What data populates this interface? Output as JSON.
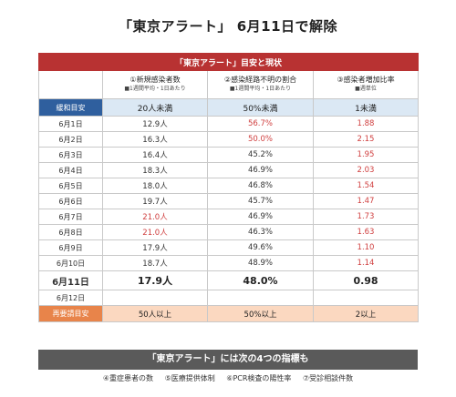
{
  "title": "「東京アラート」 6月11日で解除",
  "table": {
    "caption": "「東京アラート」目安と現状",
    "headers": [
      {
        "label": "①新規感染者数",
        "sub": "■1週間平均・1日あたり"
      },
      {
        "label": "②感染経路不明の割合",
        "sub": "■1週間平均・1日あたり"
      },
      {
        "label": "③感染者増加比率",
        "sub": "■週単位"
      }
    ],
    "standard": {
      "label": "緩和目安",
      "values": [
        "20人未満",
        "50%未満",
        "1未満"
      ]
    },
    "rows": [
      {
        "date": "6月1日",
        "v1": "12.9人",
        "v1c": "blk",
        "v2": "56.7%",
        "v2c": "red",
        "v3": "1.88",
        "v3c": "red"
      },
      {
        "date": "6月2日",
        "v1": "16.3人",
        "v1c": "blk",
        "v2": "50.0%",
        "v2c": "red",
        "v3": "2.15",
        "v3c": "red"
      },
      {
        "date": "6月3日",
        "v1": "16.4人",
        "v1c": "blk",
        "v2": "45.2%",
        "v2c": "blk",
        "v3": "1.95",
        "v3c": "red"
      },
      {
        "date": "6月4日",
        "v1": "18.3人",
        "v1c": "blk",
        "v2": "46.9%",
        "v2c": "blk",
        "v3": "2.03",
        "v3c": "red"
      },
      {
        "date": "6月5日",
        "v1": "18.0人",
        "v1c": "blk",
        "v2": "46.8%",
        "v2c": "blk",
        "v3": "1.54",
        "v3c": "red"
      },
      {
        "date": "6月6日",
        "v1": "19.7人",
        "v1c": "blk",
        "v2": "45.7%",
        "v2c": "blk",
        "v3": "1.47",
        "v3c": "red"
      },
      {
        "date": "6月7日",
        "v1": "21.0人",
        "v1c": "red",
        "v2": "46.9%",
        "v2c": "blk",
        "v3": "1.73",
        "v3c": "red"
      },
      {
        "date": "6月8日",
        "v1": "21.0人",
        "v1c": "red",
        "v2": "46.3%",
        "v2c": "blk",
        "v3": "1.63",
        "v3c": "red"
      },
      {
        "date": "6月9日",
        "v1": "17.9人",
        "v1c": "blk",
        "v2": "49.6%",
        "v2c": "blk",
        "v3": "1.10",
        "v3c": "red"
      },
      {
        "date": "6月10日",
        "v1": "18.7人",
        "v1c": "blk",
        "v2": "48.9%",
        "v2c": "blk",
        "v3": "1.14",
        "v3c": "red"
      }
    ],
    "current": {
      "date": "6月11日",
      "v1": "17.9人",
      "v2": "48.0%",
      "v3": "0.98"
    },
    "blank_row": {
      "date": "6月12日"
    },
    "requirement": {
      "label": "再要請目安",
      "values": [
        "50人以上",
        "50%以上",
        "2以上"
      ]
    }
  },
  "footer": {
    "bar": "「東京アラート」には次の4つの指標も",
    "items": [
      "④重症患者の数",
      "⑤医療提供体制",
      "⑥PCR検査の陽性率",
      "⑦受診相談件数"
    ]
  }
}
